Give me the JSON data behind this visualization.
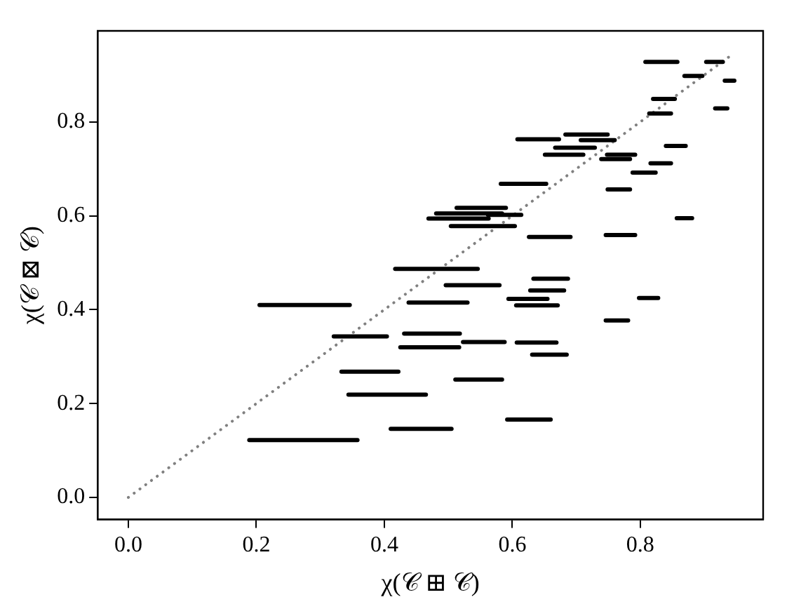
{
  "chart_data": {
    "type": "line",
    "xlabel": "χ(𝒞 ⊞ 𝒞)",
    "ylabel": "χ(𝒞 ⊠ 𝒞)",
    "xlim": [
      -0.048,
      0.992
    ],
    "ylim": [
      -0.047,
      0.994
    ],
    "xticks": [
      {
        "value": 0,
        "label": "0.0"
      },
      {
        "value": 0.2,
        "label": "0.2"
      },
      {
        "value": 0.4,
        "label": "0.4"
      },
      {
        "value": 0.6,
        "label": "0.6"
      },
      {
        "value": 0.8,
        "label": "0.8"
      }
    ],
    "yticks": [
      {
        "value": 0,
        "label": "0.0"
      },
      {
        "value": 0.2,
        "label": "0.2"
      },
      {
        "value": 0.4,
        "label": "0.4"
      },
      {
        "value": 0.6,
        "label": "0.6"
      },
      {
        "value": 0.8,
        "label": "0.8"
      }
    ],
    "grid": false,
    "legend": false,
    "marker": "none",
    "series": [
      {
        "color": "#000000",
        "x": [
          0.189,
          0.358
        ],
        "values": [
          0.122,
          0.122
        ]
      },
      {
        "color": "#000000",
        "x": [
          0.205,
          0.346
        ],
        "values": [
          0.41,
          0.41
        ]
      },
      {
        "color": "#000000",
        "x": [
          0.321,
          0.404
        ],
        "values": [
          0.343,
          0.343
        ]
      },
      {
        "color": "#000000",
        "x": [
          0.333,
          0.422
        ],
        "values": [
          0.268,
          0.268
        ]
      },
      {
        "color": "#000000",
        "x": [
          0.344,
          0.465
        ],
        "values": [
          0.219,
          0.219
        ]
      },
      {
        "color": "#000000",
        "x": [
          0.41,
          0.505
        ],
        "values": [
          0.146,
          0.146
        ]
      },
      {
        "color": "#000000",
        "x": [
          0.431,
          0.518
        ],
        "values": [
          0.349,
          0.349
        ]
      },
      {
        "color": "#000000",
        "x": [
          0.425,
          0.517
        ],
        "values": [
          0.32,
          0.32
        ]
      },
      {
        "color": "#000000",
        "x": [
          0.417,
          0.546
        ],
        "values": [
          0.487,
          0.487
        ]
      },
      {
        "color": "#000000",
        "x": [
          0.438,
          0.53
        ],
        "values": [
          0.415,
          0.415
        ]
      },
      {
        "color": "#000000",
        "x": [
          0.496,
          0.58
        ],
        "values": [
          0.452,
          0.452
        ]
      },
      {
        "color": "#000000",
        "x": [
          0.523,
          0.588
        ],
        "values": [
          0.331,
          0.331
        ]
      },
      {
        "color": "#000000",
        "x": [
          0.511,
          0.584
        ],
        "values": [
          0.251,
          0.251
        ]
      },
      {
        "color": "#000000",
        "x": [
          0.592,
          0.66
        ],
        "values": [
          0.166,
          0.166
        ]
      },
      {
        "color": "#000000",
        "x": [
          0.594,
          0.655
        ],
        "values": [
          0.423,
          0.423
        ]
      },
      {
        "color": "#000000",
        "x": [
          0.606,
          0.671
        ],
        "values": [
          0.409,
          0.409
        ]
      },
      {
        "color": "#000000",
        "x": [
          0.628,
          0.681
        ],
        "values": [
          0.441,
          0.441
        ]
      },
      {
        "color": "#000000",
        "x": [
          0.633,
          0.687
        ],
        "values": [
          0.466,
          0.466
        ]
      },
      {
        "color": "#000000",
        "x": [
          0.607,
          0.669
        ],
        "values": [
          0.33,
          0.33
        ]
      },
      {
        "color": "#000000",
        "x": [
          0.631,
          0.685
        ],
        "values": [
          0.304,
          0.304
        ]
      },
      {
        "color": "#000000",
        "x": [
          0.626,
          0.691
        ],
        "values": [
          0.555,
          0.555
        ]
      },
      {
        "color": "#000000",
        "x": [
          0.746,
          0.792
        ],
        "values": [
          0.559,
          0.559
        ]
      },
      {
        "color": "#000000",
        "x": [
          0.746,
          0.781
        ],
        "values": [
          0.377,
          0.377
        ]
      },
      {
        "color": "#000000",
        "x": [
          0.798,
          0.828
        ],
        "values": [
          0.425,
          0.425
        ]
      },
      {
        "color": "#000000",
        "x": [
          0.857,
          0.881
        ],
        "values": [
          0.595,
          0.595
        ]
      },
      {
        "color": "#000000",
        "x": [
          0.469,
          0.563
        ],
        "values": [
          0.594,
          0.594
        ]
      },
      {
        "color": "#000000",
        "x": [
          0.481,
          0.584
        ],
        "values": [
          0.605,
          0.605
        ]
      },
      {
        "color": "#000000",
        "x": [
          0.513,
          0.59
        ],
        "values": [
          0.617,
          0.617
        ]
      },
      {
        "color": "#000000",
        "x": [
          0.562,
          0.614
        ],
        "values": [
          0.602,
          0.602
        ]
      },
      {
        "color": "#000000",
        "x": [
          0.504,
          0.604
        ],
        "values": [
          0.578,
          0.578
        ]
      },
      {
        "color": "#000000",
        "x": [
          0.582,
          0.653
        ],
        "values": [
          0.668,
          0.668
        ]
      },
      {
        "color": "#000000",
        "x": [
          0.608,
          0.673
        ],
        "values": [
          0.763,
          0.763
        ]
      },
      {
        "color": "#000000",
        "x": [
          0.683,
          0.749
        ],
        "values": [
          0.773,
          0.773
        ]
      },
      {
        "color": "#000000",
        "x": [
          0.707,
          0.76
        ],
        "values": [
          0.761,
          0.761
        ]
      },
      {
        "color": "#000000",
        "x": [
          0.667,
          0.729
        ],
        "values": [
          0.745,
          0.745
        ]
      },
      {
        "color": "#000000",
        "x": [
          0.651,
          0.711
        ],
        "values": [
          0.73,
          0.73
        ]
      },
      {
        "color": "#000000",
        "x": [
          0.739,
          0.784
        ],
        "values": [
          0.721,
          0.721
        ]
      },
      {
        "color": "#000000",
        "x": [
          0.748,
          0.792
        ],
        "values": [
          0.73,
          0.73
        ]
      },
      {
        "color": "#000000",
        "x": [
          0.749,
          0.784
        ],
        "values": [
          0.656,
          0.656
        ]
      },
      {
        "color": "#000000",
        "x": [
          0.788,
          0.824
        ],
        "values": [
          0.692,
          0.692
        ]
      },
      {
        "color": "#000000",
        "x": [
          0.816,
          0.848
        ],
        "values": [
          0.712,
          0.712
        ]
      },
      {
        "color": "#000000",
        "x": [
          0.84,
          0.871
        ],
        "values": [
          0.749,
          0.749
        ]
      },
      {
        "color": "#000000",
        "x": [
          0.814,
          0.848
        ],
        "values": [
          0.818,
          0.818
        ]
      },
      {
        "color": "#000000",
        "x": [
          0.82,
          0.854
        ],
        "values": [
          0.849,
          0.849
        ]
      },
      {
        "color": "#000000",
        "x": [
          0.808,
          0.858
        ],
        "values": [
          0.928,
          0.928
        ]
      },
      {
        "color": "#000000",
        "x": [
          0.869,
          0.897
        ],
        "values": [
          0.898,
          0.898
        ]
      },
      {
        "color": "#000000",
        "x": [
          0.903,
          0.929
        ],
        "values": [
          0.928,
          0.928
        ]
      },
      {
        "color": "#000000",
        "x": [
          0.932,
          0.947
        ],
        "values": [
          0.888,
          0.888
        ]
      },
      {
        "color": "#000000",
        "x": [
          0.917,
          0.936
        ],
        "values": [
          0.829,
          0.829
        ]
      },
      {
        "color": "#808080",
        "line_style": "dotted",
        "x": [
          0,
          0.94
        ],
        "values": [
          0,
          0.94
        ]
      }
    ]
  }
}
